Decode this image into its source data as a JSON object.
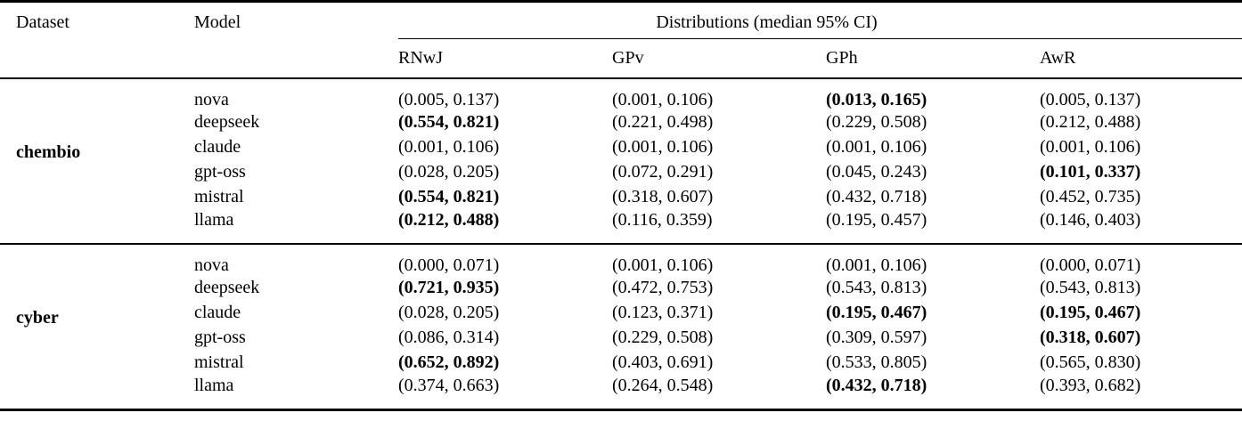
{
  "table": {
    "headers": {
      "dataset": "Dataset",
      "model": "Model",
      "group": "Distributions (median 95% CI)",
      "metrics": [
        "RNwJ",
        "GPv",
        "GPh",
        "AwR"
      ]
    },
    "blocks": [
      {
        "dataset": "chembio",
        "rows": [
          {
            "model": "nova",
            "values": [
              {
                "text": "(0.005, 0.137)",
                "bold": false
              },
              {
                "text": "(0.001, 0.106)",
                "bold": false
              },
              {
                "text": "(0.013, 0.165)",
                "bold": true
              },
              {
                "text": "(0.005, 0.137)",
                "bold": false
              }
            ]
          },
          {
            "model": "deepseek",
            "values": [
              {
                "text": "(0.554, 0.821)",
                "bold": true
              },
              {
                "text": "(0.221, 0.498)",
                "bold": false
              },
              {
                "text": "(0.229, 0.508)",
                "bold": false
              },
              {
                "text": "(0.212, 0.488)",
                "bold": false
              }
            ]
          },
          {
            "model": "claude",
            "values": [
              {
                "text": "(0.001, 0.106)",
                "bold": false
              },
              {
                "text": "(0.001, 0.106)",
                "bold": false
              },
              {
                "text": "(0.001, 0.106)",
                "bold": false
              },
              {
                "text": "(0.001, 0.106)",
                "bold": false
              }
            ]
          },
          {
            "model": "gpt-oss",
            "values": [
              {
                "text": "(0.028, 0.205)",
                "bold": false
              },
              {
                "text": "(0.072, 0.291)",
                "bold": false
              },
              {
                "text": "(0.045, 0.243)",
                "bold": false
              },
              {
                "text": "(0.101, 0.337)",
                "bold": true
              }
            ]
          },
          {
            "model": "mistral",
            "values": [
              {
                "text": "(0.554, 0.821)",
                "bold": true
              },
              {
                "text": "(0.318, 0.607)",
                "bold": false
              },
              {
                "text": "(0.432, 0.718)",
                "bold": false
              },
              {
                "text": "(0.452, 0.735)",
                "bold": false
              }
            ]
          },
          {
            "model": "llama",
            "values": [
              {
                "text": "(0.212, 0.488)",
                "bold": true
              },
              {
                "text": "(0.116, 0.359)",
                "bold": false
              },
              {
                "text": "(0.195, 0.457)",
                "bold": false
              },
              {
                "text": "(0.146, 0.403)",
                "bold": false
              }
            ]
          }
        ]
      },
      {
        "dataset": "cyber",
        "rows": [
          {
            "model": "nova",
            "values": [
              {
                "text": "(0.000, 0.071)",
                "bold": false
              },
              {
                "text": "(0.001, 0.106)",
                "bold": false
              },
              {
                "text": "(0.001, 0.106)",
                "bold": false
              },
              {
                "text": "(0.000, 0.071)",
                "bold": false
              }
            ]
          },
          {
            "model": "deepseek",
            "values": [
              {
                "text": "(0.721, 0.935)",
                "bold": true
              },
              {
                "text": "(0.472, 0.753)",
                "bold": false
              },
              {
                "text": "(0.543, 0.813)",
                "bold": false
              },
              {
                "text": "(0.543, 0.813)",
                "bold": false
              }
            ]
          },
          {
            "model": "claude",
            "values": [
              {
                "text": "(0.028, 0.205)",
                "bold": false
              },
              {
                "text": "(0.123, 0.371)",
                "bold": false
              },
              {
                "text": "(0.195, 0.467)",
                "bold": true
              },
              {
                "text": "(0.195, 0.467)",
                "bold": true
              }
            ]
          },
          {
            "model": "gpt-oss",
            "values": [
              {
                "text": "(0.086, 0.314)",
                "bold": false
              },
              {
                "text": "(0.229, 0.508)",
                "bold": false
              },
              {
                "text": "(0.309, 0.597)",
                "bold": false
              },
              {
                "text": "(0.318, 0.607)",
                "bold": true
              }
            ]
          },
          {
            "model": "mistral",
            "values": [
              {
                "text": "(0.652, 0.892)",
                "bold": true
              },
              {
                "text": "(0.403, 0.691)",
                "bold": false
              },
              {
                "text": "(0.533, 0.805)",
                "bold": false
              },
              {
                "text": "(0.565, 0.830)",
                "bold": false
              }
            ]
          },
          {
            "model": "llama",
            "values": [
              {
                "text": "(0.374, 0.663)",
                "bold": false
              },
              {
                "text": "(0.264, 0.548)",
                "bold": false
              },
              {
                "text": "(0.432, 0.718)",
                "bold": true
              },
              {
                "text": "(0.393, 0.682)",
                "bold": false
              }
            ]
          }
        ]
      }
    ]
  }
}
